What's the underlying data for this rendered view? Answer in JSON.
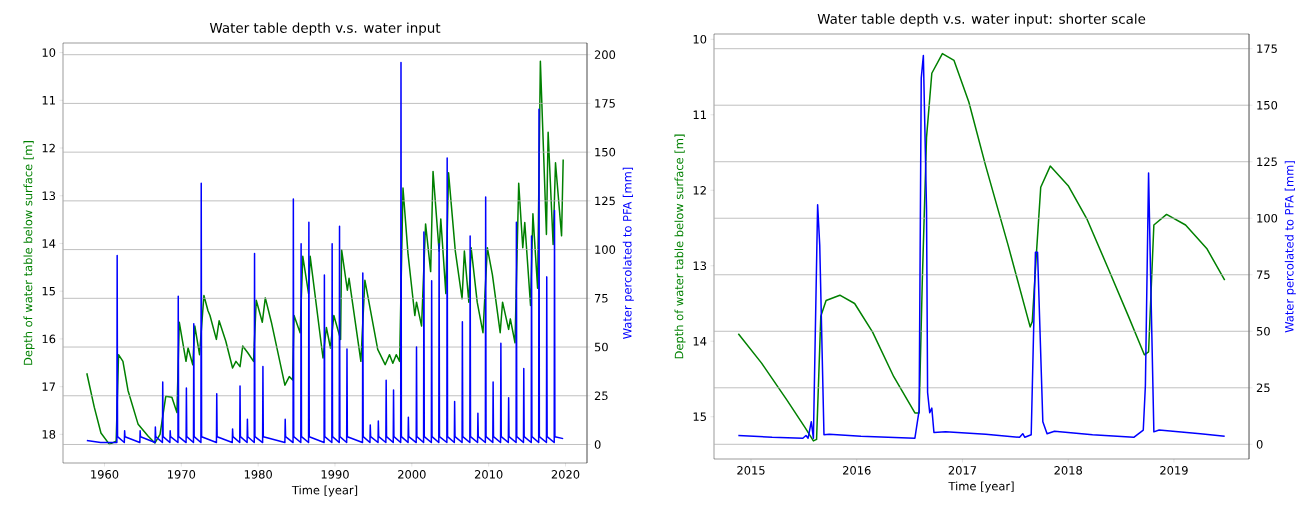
{
  "chart_data": [
    {
      "type": "line",
      "title": "Water table depth v.s. water input",
      "xlabel": "Time [year]",
      "ylabel": "Depth of water table below surface [m]",
      "y2label": "Water percolated to PFA [mm]",
      "xlim": [
        1954.6,
        2022.8
      ],
      "ylim": [
        18.6,
        9.8
      ],
      "y2lim": [
        -9.5,
        206
      ],
      "xticks": [
        1960,
        1970,
        1980,
        1990,
        2000,
        2010,
        2020
      ],
      "yticks": [
        10,
        11,
        12,
        13,
        14,
        15,
        16,
        17,
        18
      ],
      "y2ticks": [
        0,
        25,
        50,
        75,
        100,
        125,
        150,
        175,
        200
      ],
      "grid": "y2",
      "series": [
        {
          "color": "#008000",
          "x": [
            1957.7,
            1958.67,
            1959.54,
            1960.64,
            1961.52,
            1961.83,
            1962.4,
            1963.06,
            1964.38,
            1965.69,
            1966.57,
            1967.23,
            1967.98,
            1968.77,
            1969.43,
            1969.73,
            1970.61,
            1970.88,
            1971.49,
            1971.76,
            1972.37,
            1972.94,
            1973.47,
            1973.73,
            1974.56,
            1974.92,
            1975.79,
            1976.67,
            1977.11,
            1977.64,
            1977.99,
            1978.65,
            1979.4,
            1979.75,
            1980.54,
            1980.93,
            1981.72,
            1983.48,
            1984.05,
            1984.49,
            1984.67,
            1985.46,
            1985.81,
            1986.56,
            1986.77,
            1988.44,
            1988.88,
            1989.41,
            1989.85,
            1990.73,
            1990.86,
            1991.61,
            1991.83,
            1993.37,
            1993.89,
            1995.56,
            1996.53,
            1997.1,
            1997.53,
            1997.97,
            1998.41,
            1998.85,
            1999.51,
            2000.39,
            2000.61,
            2001.27,
            2001.79,
            2002.45,
            2002.76,
            2003.55,
            2003.77,
            2004.43,
            2004.78,
            2005.66,
            2006.54,
            2006.84,
            2007.42,
            2007.72,
            2008.51,
            2009.26,
            2009.83,
            2010.49,
            2011.5,
            2011.81,
            2012.6,
            2012.82,
            2013.43,
            2013.91,
            2014.44,
            2014.7,
            2015.45,
            2015.76,
            2016.37,
            2016.73,
            2017.52,
            2017.74,
            2018.39,
            2018.7,
            2019.49,
            2019.7
          ],
          "values": [
            16.72,
            17.43,
            17.97,
            18.21,
            18.14,
            16.33,
            16.47,
            17.08,
            17.79,
            18.04,
            18.18,
            18.0,
            17.2,
            17.22,
            17.54,
            15.65,
            16.47,
            16.19,
            16.54,
            15.73,
            16.33,
            15.09,
            15.41,
            15.51,
            16.01,
            15.62,
            16.05,
            16.61,
            16.47,
            16.58,
            16.15,
            16.29,
            16.47,
            15.19,
            15.65,
            15.14,
            15.65,
            16.97,
            16.79,
            16.86,
            15.51,
            15.87,
            14.27,
            15.05,
            14.27,
            16.4,
            15.76,
            16.19,
            15.51,
            16.01,
            14.13,
            14.98,
            14.73,
            16.47,
            14.77,
            16.22,
            16.54,
            16.33,
            16.51,
            16.33,
            16.47,
            12.84,
            14.23,
            15.51,
            15.23,
            15.73,
            13.59,
            14.59,
            12.49,
            14.16,
            13.49,
            15.05,
            12.52,
            14.16,
            15.16,
            14.16,
            15.23,
            14.09,
            15.23,
            15.87,
            14.09,
            14.66,
            15.87,
            15.23,
            15.8,
            15.58,
            16.08,
            12.74,
            14.09,
            13.56,
            15.3,
            13.38,
            14.94,
            10.18,
            13.81,
            11.67,
            14.02,
            12.31,
            13.84,
            12.24
          ]
        },
        {
          "color": "#0000ff",
          "axis": "y2",
          "x": [
            1957.7,
            1959.5,
            1961.0,
            1961.61,
            1961.65,
            1961.7,
            1962.58,
            1962.62,
            1962.67,
            1964.6,
            1964.64,
            1964.69,
            1966.58,
            1966.62,
            1966.67,
            1967.54,
            1967.58,
            1967.63,
            1968.51,
            1968.55,
            1968.6,
            1969.56,
            1969.6,
            1969.65,
            1970.62,
            1970.66,
            1970.71,
            1971.58,
            1971.62,
            1971.67,
            1972.55,
            1972.59,
            1972.64,
            1974.57,
            1974.61,
            1974.66,
            1976.63,
            1976.67,
            1976.72,
            1977.6,
            1977.64,
            1977.69,
            1978.56,
            1978.6,
            1978.65,
            1979.49,
            1979.53,
            1979.58,
            1980.58,
            1980.62,
            1980.67,
            1983.48,
            1983.52,
            1983.57,
            1984.54,
            1984.58,
            1984.63,
            1985.55,
            1985.59,
            1985.64,
            1986.56,
            1986.6,
            1986.65,
            1988.58,
            1988.62,
            1988.67,
            1989.59,
            1989.63,
            1989.68,
            1990.55,
            1990.59,
            1990.64,
            1991.52,
            1991.56,
            1991.61,
            1993.58,
            1993.62,
            1993.67,
            1994.55,
            1994.59,
            1994.64,
            1995.6,
            1995.64,
            1995.69,
            1996.62,
            1996.66,
            1996.71,
            1997.58,
            1997.62,
            1997.67,
            1998.55,
            1998.59,
            1998.64,
            1999.51,
            1999.55,
            1999.6,
            2000.57,
            2000.61,
            2000.66,
            2001.53,
            2001.57,
            2001.62,
            2002.54,
            2002.58,
            2002.63,
            2003.51,
            2003.55,
            2003.6,
            2004.56,
            2004.6,
            2004.65,
            2005.53,
            2005.57,
            2005.62,
            2006.54,
            2006.58,
            2006.63,
            2007.55,
            2007.59,
            2007.64,
            2008.56,
            2008.6,
            2008.65,
            2009.57,
            2009.61,
            2009.66,
            2010.54,
            2010.58,
            2010.63,
            2011.55,
            2011.59,
            2011.64,
            2012.56,
            2012.6,
            2012.65,
            2013.57,
            2013.61,
            2013.66,
            2014.53,
            2014.57,
            2014.62,
            2015.54,
            2015.58,
            2015.63,
            2016.51,
            2016.55,
            2016.6,
            2017.52,
            2017.56,
            2017.61,
            2018.53,
            2018.57,
            2018.62,
            2019.7
          ],
          "values": [
            2,
            1,
            1,
            1,
            97,
            4,
            1,
            7,
            4,
            1,
            7,
            4,
            1,
            9,
            4,
            1,
            32,
            4,
            1,
            7,
            4,
            1,
            76,
            4,
            1,
            29,
            4,
            1,
            62,
            4,
            1,
            134,
            4,
            1,
            26,
            4,
            1,
            8,
            4,
            1,
            30,
            4,
            1,
            13,
            4,
            1,
            98,
            4,
            1,
            40,
            4,
            1,
            13,
            4,
            1,
            126,
            4,
            1,
            103,
            4,
            1,
            114,
            4,
            1,
            87,
            4,
            1,
            103,
            4,
            1,
            112,
            4,
            1,
            49,
            4,
            1,
            88,
            4,
            1,
            10,
            4,
            1,
            12,
            4,
            1,
            33,
            4,
            1,
            28,
            4,
            1,
            196,
            4,
            1,
            14,
            4,
            1,
            50,
            4,
            1,
            109,
            4,
            1,
            84,
            4,
            1,
            103,
            4,
            1,
            147,
            4,
            1,
            22,
            4,
            1,
            63,
            4,
            1,
            107,
            4,
            1,
            16,
            4,
            1,
            127,
            4,
            1,
            32,
            4,
            1,
            52,
            4,
            1,
            24,
            4,
            1,
            114,
            4,
            1,
            39,
            4,
            1,
            107,
            4,
            1,
            172,
            4,
            1,
            86,
            4,
            1,
            120,
            4,
            3
          ]
        }
      ]
    },
    {
      "type": "line",
      "title": "Water table depth v.s. water input: shorter scale",
      "xlabel": "Time [year]",
      "ylabel": "Depth of water table below surface [m]",
      "y2label": "Water percolated to PFA [mm]",
      "xlim": [
        2014.65,
        2019.71
      ],
      "ylim": [
        15.56,
        9.93
      ],
      "y2lim": [
        -6.5,
        181.5
      ],
      "xticks": [
        2015,
        2016,
        2017,
        2018,
        2019
      ],
      "yticks": [
        10,
        11,
        12,
        13,
        14,
        15
      ],
      "y2ticks": [
        0,
        25,
        50,
        75,
        100,
        125,
        150,
        175
      ],
      "grid": "y2",
      "series": [
        {
          "color": "#008000",
          "x": [
            2014.88,
            2015.1,
            2015.34,
            2015.51,
            2015.59,
            2015.62,
            2015.66,
            2015.71,
            2015.84,
            2015.98,
            2016.15,
            2016.35,
            2016.55,
            2016.59,
            2016.62,
            2016.66,
            2016.71,
            2016.81,
            2016.92,
            2017.06,
            2017.22,
            2017.43,
            2017.64,
            2017.66,
            2017.7,
            2017.74,
            2017.83,
            2018.0,
            2018.18,
            2018.37,
            2018.57,
            2018.72,
            2018.76,
            2018.81,
            2018.93,
            2019.11,
            2019.31,
            2019.48
          ],
          "values": [
            13.9,
            14.29,
            14.78,
            15.14,
            15.32,
            15.3,
            13.67,
            13.46,
            13.39,
            13.5,
            13.88,
            14.47,
            14.95,
            14.95,
            13.2,
            11.3,
            10.45,
            10.19,
            10.28,
            10.83,
            11.68,
            12.72,
            13.81,
            13.74,
            12.82,
            11.96,
            11.68,
            11.94,
            12.39,
            13.01,
            13.67,
            14.18,
            14.14,
            12.46,
            12.32,
            12.46,
            12.77,
            13.19
          ]
        },
        {
          "color": "#0000ff",
          "axis": "y2",
          "x": [
            2014.88,
            2015.2,
            2015.49,
            2015.52,
            2015.54,
            2015.57,
            2015.59,
            2015.63,
            2015.65,
            2015.69,
            2015.74,
            2016.04,
            2016.55,
            2016.59,
            2016.61,
            2016.63,
            2016.66,
            2016.67,
            2016.69,
            2016.71,
            2016.73,
            2016.84,
            2017.22,
            2017.54,
            2017.57,
            2017.59,
            2017.65,
            2017.69,
            2017.71,
            2017.76,
            2017.8,
            2017.87,
            2018.23,
            2018.62,
            2018.71,
            2018.73,
            2018.76,
            2018.78,
            2018.81,
            2018.86,
            2019.25,
            2019.48
          ],
          "values": [
            3.9,
            3.1,
            2.7,
            3.9,
            2.7,
            10,
            2.7,
            106,
            88,
            4.2,
            4.5,
            3.6,
            2.7,
            15,
            162,
            172,
            104,
            23,
            14,
            16,
            5.2,
            5.5,
            4.4,
            3.1,
            4.7,
            3.1,
            4.2,
            85,
            85,
            10,
            4.7,
            5.8,
            4.2,
            3.1,
            6.3,
            26,
            120,
            73,
            5.5,
            6.3,
            4.7,
            3.6
          ]
        }
      ]
    }
  ]
}
